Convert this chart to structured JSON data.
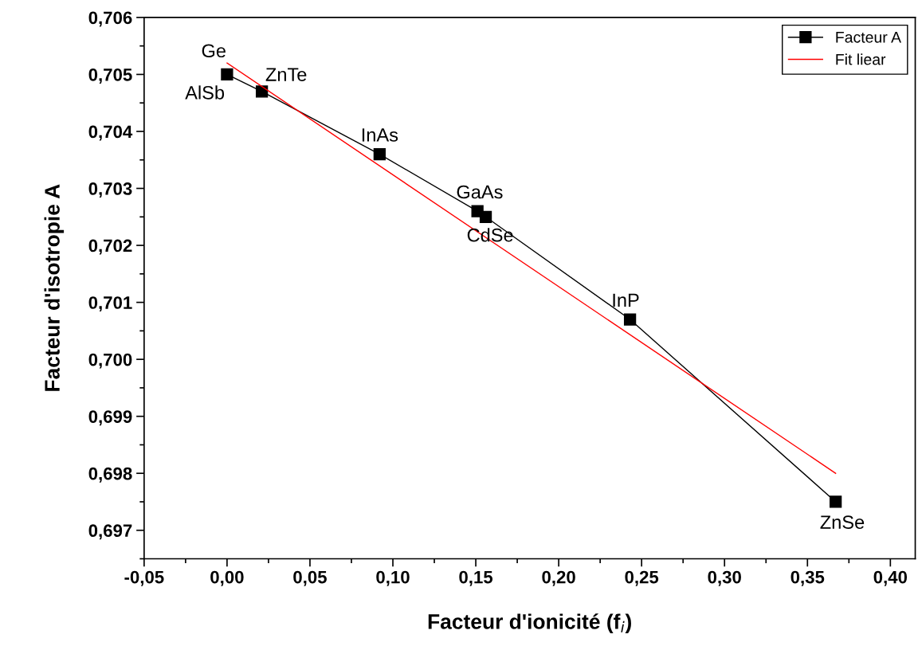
{
  "chart_data": {
    "type": "line",
    "xlabel": "Facteur d'ionicité (f$_{i}$)",
    "ylabel": "Facteur d'isotropie A",
    "xlim": [
      -0.05,
      0.415
    ],
    "ylim": [
      0.6965,
      0.706
    ],
    "xticks": [
      {
        "value": -0.05,
        "label": "-0,05"
      },
      {
        "value": 0.0,
        "label": "0,00"
      },
      {
        "value": 0.05,
        "label": "0,05"
      },
      {
        "value": 0.1,
        "label": "0,10"
      },
      {
        "value": 0.15,
        "label": "0,15"
      },
      {
        "value": 0.2,
        "label": "0,20"
      },
      {
        "value": 0.25,
        "label": "0,25"
      },
      {
        "value": 0.3,
        "label": "0,30"
      },
      {
        "value": 0.35,
        "label": "0,35"
      },
      {
        "value": 0.4,
        "label": "0,40"
      }
    ],
    "yticks": [
      {
        "value": 0.697,
        "label": "0,697"
      },
      {
        "value": 0.698,
        "label": "0,698"
      },
      {
        "value": 0.699,
        "label": "0,699"
      },
      {
        "value": 0.7,
        "label": "0,700"
      },
      {
        "value": 0.701,
        "label": "0,701"
      },
      {
        "value": 0.702,
        "label": "0,702"
      },
      {
        "value": 0.703,
        "label": "0,703"
      },
      {
        "value": 0.704,
        "label": "0,704"
      },
      {
        "value": 0.705,
        "label": "0,705"
      },
      {
        "value": 0.706,
        "label": "0,706"
      }
    ],
    "series": [
      {
        "name": "Facteur A",
        "color": "#000000",
        "marker": "square",
        "x": [
          0.0,
          0.021,
          0.092,
          0.151,
          0.156,
          0.243,
          0.367
        ],
        "values": [
          0.705,
          0.7047,
          0.7036,
          0.7026,
          0.7025,
          0.7007,
          0.6975
        ]
      },
      {
        "name": "Fit liear",
        "color": "#ff0000",
        "marker": "none",
        "x": [
          0.0,
          0.367
        ],
        "values": [
          0.7052,
          0.698
        ]
      }
    ],
    "annotations": [
      {
        "text": "Ge",
        "x": 0.0,
        "y": 0.705
      },
      {
        "text": "ZnTe",
        "x": 0.021,
        "y": 0.7047
      },
      {
        "text": "AlSb",
        "x": 0.0,
        "y": 0.705
      },
      {
        "text": "InAs",
        "x": 0.092,
        "y": 0.7036
      },
      {
        "text": "GaAs",
        "x": 0.151,
        "y": 0.7026
      },
      {
        "text": "CdSe",
        "x": 0.156,
        "y": 0.7025
      },
      {
        "text": "InP",
        "x": 0.243,
        "y": 0.7007
      },
      {
        "text": "ZnSe",
        "x": 0.367,
        "y": 0.6975
      }
    ],
    "legend": "top right",
    "grid": false
  }
}
